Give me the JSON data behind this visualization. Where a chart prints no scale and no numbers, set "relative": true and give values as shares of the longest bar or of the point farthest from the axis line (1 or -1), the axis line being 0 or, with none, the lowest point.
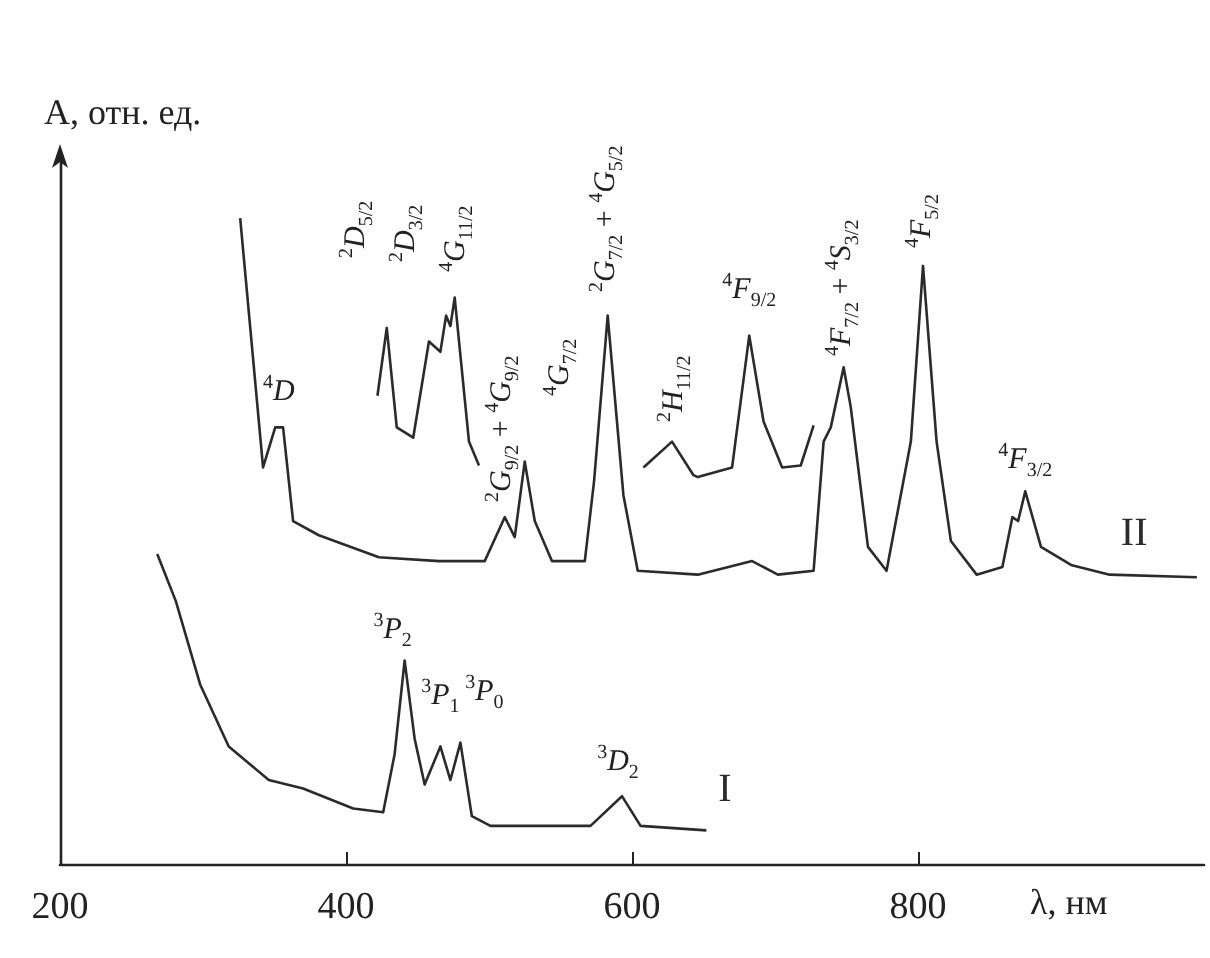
{
  "chart_data": {
    "type": "line",
    "relative": true,
    "ylabel": "A, отн. ед.",
    "xlabel": "λ, нм",
    "xlim": [
      200,
      1000
    ],
    "xticks": [
      200,
      400,
      600,
      800
    ],
    "marker": "none",
    "line_style": "solid",
    "grid": false,
    "series": [
      {
        "name": "II",
        "color": "#2b2b2b",
        "x": [
          326,
          342,
          350.5,
          356,
          363,
          381,
          423,
          465,
          497,
          511,
          518,
          525,
          532,
          544,
          567,
          573.5,
          583,
          594,
          604,
          646,
          684,
          702,
          727,
          734,
          739,
          748,
          753,
          765,
          778,
          795,
          803.5,
          813,
          823,
          841,
          859,
          866,
          870,
          875,
          886,
          907,
          934,
          995
        ],
        "values": [
          1.0,
          0.614,
          0.676,
          0.676,
          0.531,
          0.509,
          0.475,
          0.469,
          0.469,
          0.537,
          0.506,
          0.623,
          0.531,
          0.469,
          0.469,
          0.593,
          0.849,
          0.571,
          0.454,
          0.448,
          0.469,
          0.448,
          0.454,
          0.654,
          0.676,
          0.769,
          0.707,
          0.491,
          0.454,
          0.654,
          0.926,
          0.654,
          0.5,
          0.448,
          0.46,
          0.537,
          0.531,
          0.577,
          0.491,
          0.463,
          0.448,
          0.444
        ]
      },
      {
        "color": "#2b2b2b",
        "x": [
          422,
          428.5,
          435.5,
          447,
          458,
          466,
          470,
          473,
          476,
          486,
          493
        ],
        "values": [
          0.725,
          0.83,
          0.676,
          0.66,
          0.809,
          0.793,
          0.849,
          0.833,
          0.877,
          0.654,
          0.617
        ]
      },
      {
        "color": "#2b2b2b",
        "x": [
          608,
          628,
          643,
          646,
          670,
          682,
          692,
          705,
          718,
          727
        ],
        "values": [
          0.614,
          0.654,
          0.602,
          0.599,
          0.614,
          0.818,
          0.685,
          0.614,
          0.617,
          0.679
        ]
      },
      {
        "name": "I",
        "color": "#2b2b2b",
        "x": [
          268,
          281,
          298,
          318,
          346,
          370,
          405,
          426,
          434,
          441,
          448,
          455,
          466,
          473,
          480,
          488,
          501,
          571,
          593,
          606,
          652
        ],
        "values": [
          0.48,
          0.407,
          0.278,
          0.182,
          0.13,
          0.117,
          0.086,
          0.08,
          0.17,
          0.315,
          0.194,
          0.123,
          0.182,
          0.13,
          0.188,
          0.074,
          0.059,
          0.059,
          0.105,
          0.059,
          0.052
        ]
      }
    ],
    "annotations": [
      {
        "text": "$^{4}$D",
        "x": 353,
        "y": 0.676
      },
      {
        "text": "$^{2}$D$_{5/2}$",
        "x": 428.5,
        "y": 0.83
      },
      {
        "text": "$^{2}$D$_{3/2}$",
        "x": 458,
        "y": 0.809
      },
      {
        "text": "$^{4}$G$_{11/2}$",
        "x": 476,
        "y": 0.877
      },
      {
        "text": "$^{2}$G$_{9/2}$ + $^{4}$G$_{9/2}$",
        "x": 511,
        "y": 0.537
      },
      {
        "text": "$^{4}$G$_{7/2}$",
        "x": 525,
        "y": 0.623
      },
      {
        "text": "$^{2}$G$_{7/2}$ + $^{4}$G$_{5/2}$",
        "x": 583,
        "y": 0.849
      },
      {
        "text": "$^{2}$H$_{11/2}$",
        "x": 628,
        "y": 0.654
      },
      {
        "text": "$^{4}$F$_{9/2}$",
        "x": 682,
        "y": 0.818
      },
      {
        "text": "$^{4}$F$_{7/2}$ + $^{4}$S$_{3/2}$",
        "x": 748,
        "y": 0.769
      },
      {
        "text": "$^{4}$F$_{5/2}$",
        "x": 803.5,
        "y": 0.926
      },
      {
        "text": "$^{4}$F$_{3/2}$",
        "x": 875,
        "y": 0.577
      },
      {
        "text": "$^{3}$P$_{2}$",
        "x": 441,
        "y": 0.315
      },
      {
        "text": "$^{3}$P$_{1}$",
        "x": 466,
        "y": 0.182
      },
      {
        "text": "$^{3}$P$_{0}$",
        "x": 480,
        "y": 0.188
      },
      {
        "text": "$^{3}$D$_{2}$",
        "x": 593,
        "y": 0.105
      }
    ]
  }
}
